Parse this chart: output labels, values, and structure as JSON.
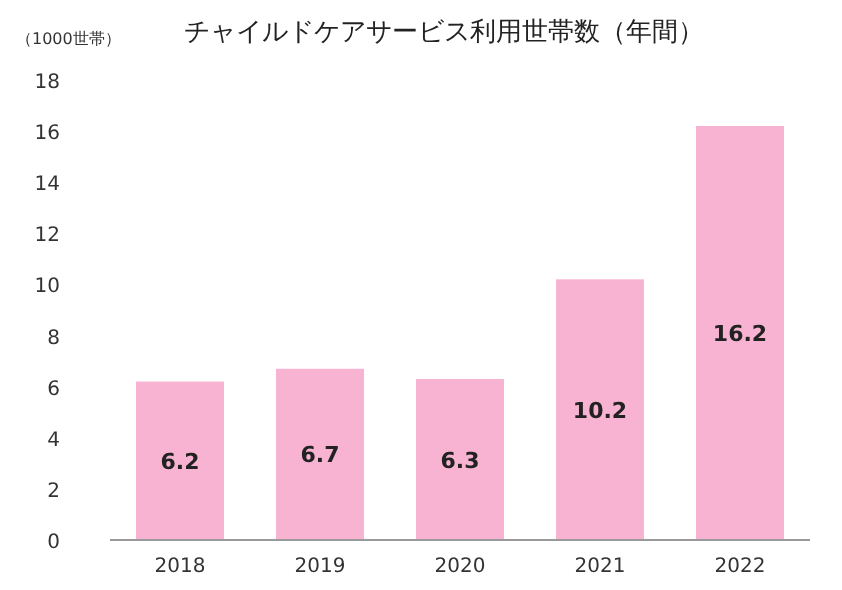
{
  "chart_data": {
    "type": "bar",
    "title": "チャイルドケアサービス利用世帯数（年間）",
    "ylabel": "（1000世帯）",
    "categories": [
      "2018",
      "2019",
      "2020",
      "2021",
      "2022"
    ],
    "values": [
      6.2,
      6.7,
      6.3,
      10.2,
      16.2
    ],
    "color": "#f9b3d2",
    "ylim": [
      0,
      18
    ],
    "yticks": [
      0,
      2,
      4,
      6,
      8,
      10,
      12,
      14,
      16,
      18
    ],
    "data_labels": true,
    "grid": false
  }
}
